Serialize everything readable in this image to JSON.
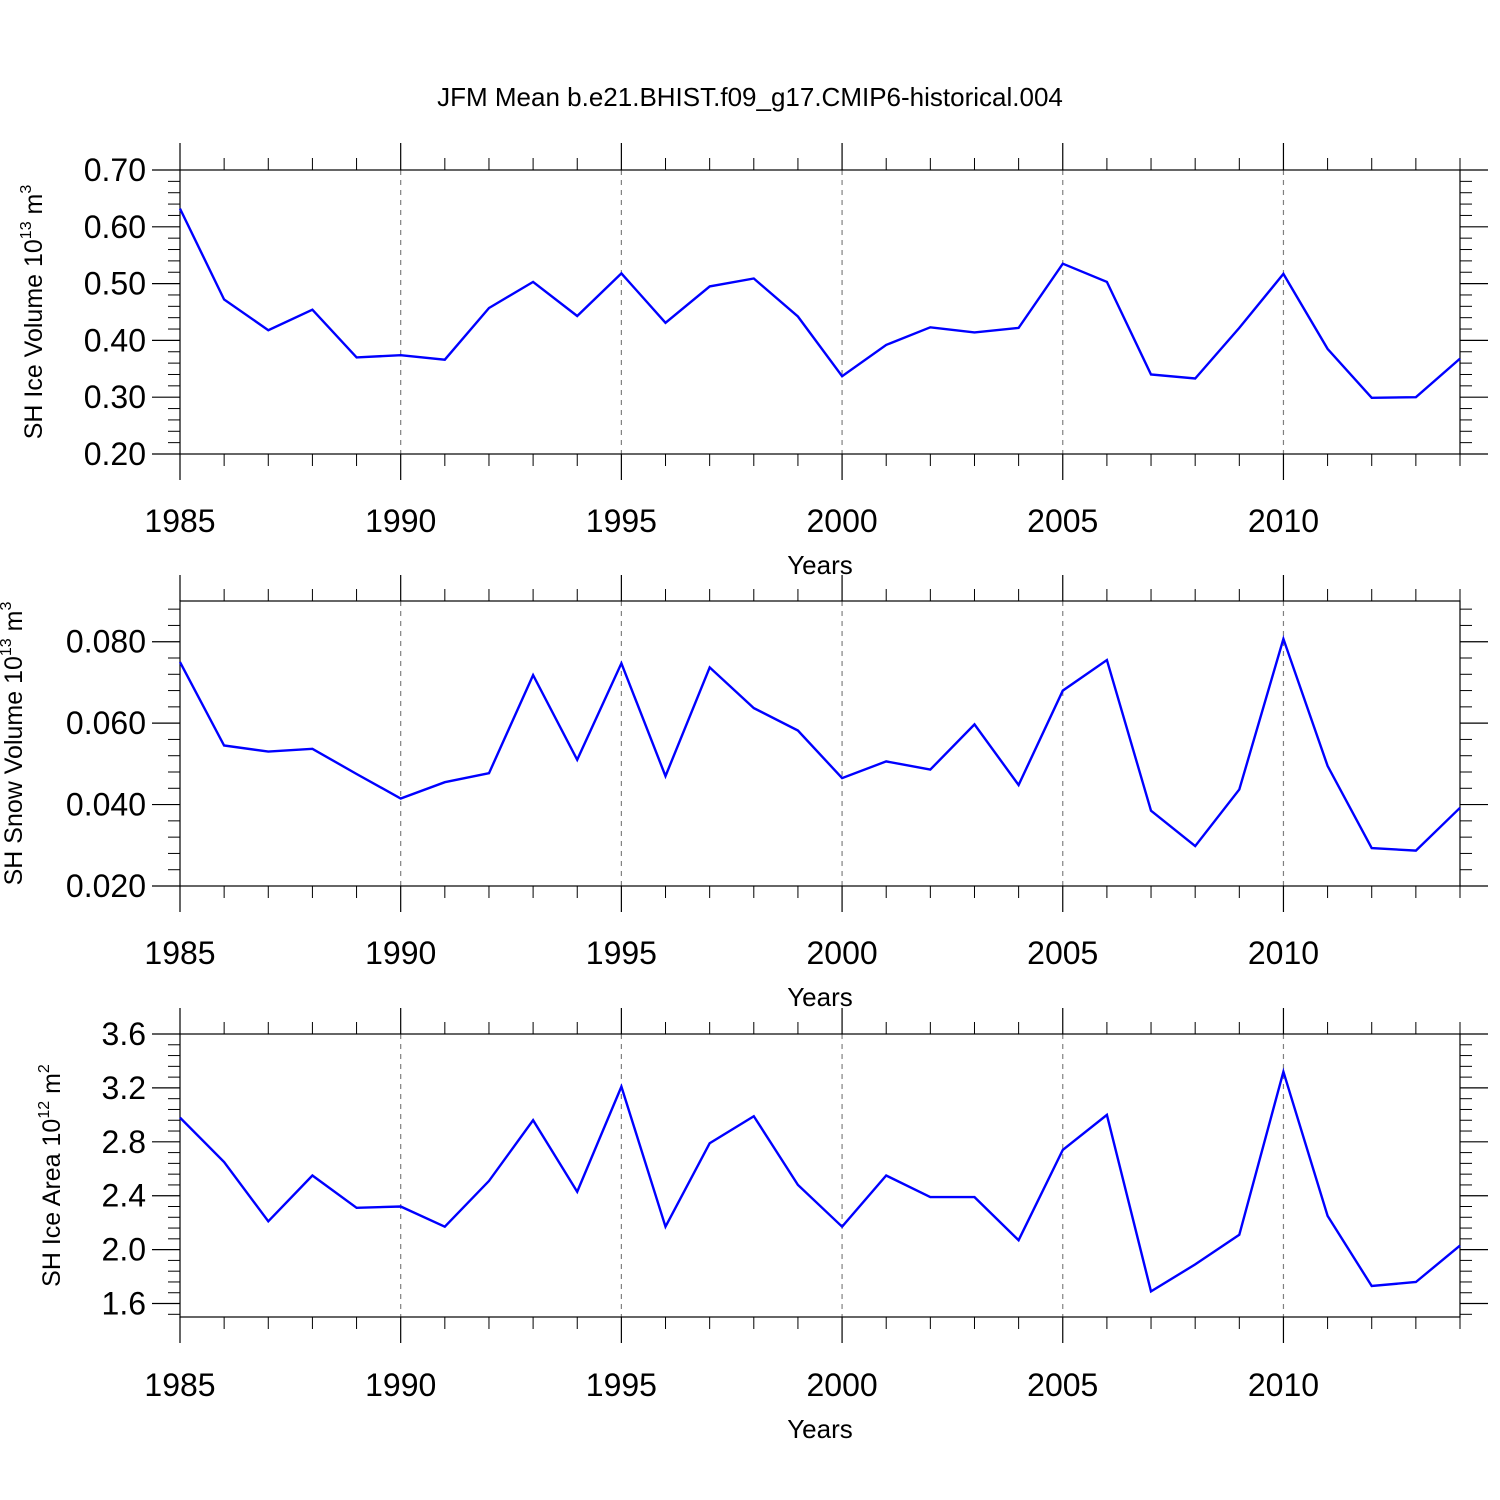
{
  "title": "JFM Mean b.e21.BHIST.f09_g17.CMIP6-historical.004",
  "colors": {
    "line": "#0000ff",
    "axes": "#000000",
    "grid": "#808080",
    "background": "#ffffff"
  },
  "chart_data": [
    {
      "type": "line",
      "ylabel": {
        "prefix": "SH Ice Volume 10",
        "exp": "13",
        "mid": " m",
        "unit_exp": "3"
      },
      "xlabel": "Years",
      "xlim": [
        1985,
        2014
      ],
      "ylim": [
        0.2,
        0.7
      ],
      "xticks": [
        1985,
        1990,
        1995,
        2000,
        2005,
        2010
      ],
      "xtick_labels": [
        "1985",
        "1990",
        "1995",
        "2000",
        "2005",
        "2010"
      ],
      "yticks": [
        0.2,
        0.3,
        0.4,
        0.5,
        0.6,
        0.7
      ],
      "ytick_labels": [
        "0.20",
        "0.30",
        "0.40",
        "0.50",
        "0.60",
        "0.70"
      ],
      "grid": "vertical dashed at major x ticks",
      "x": [
        1985,
        1986,
        1987,
        1988,
        1989,
        1990,
        1991,
        1992,
        1993,
        1994,
        1995,
        1996,
        1997,
        1998,
        1999,
        2000,
        2001,
        2002,
        2003,
        2004,
        2005,
        2006,
        2007,
        2008,
        2009,
        2010,
        2011,
        2012,
        2013,
        2014
      ],
      "series": [
        {
          "values": [
            0.632,
            0.472,
            0.418,
            0.454,
            0.37,
            0.374,
            0.366,
            0.457,
            0.503,
            0.443,
            0.518,
            0.431,
            0.495,
            0.509,
            0.442,
            0.337,
            0.392,
            0.423,
            0.414,
            0.422,
            0.535,
            0.503,
            0.34,
            0.333,
            0.422,
            0.517,
            0.385,
            0.299,
            0.3,
            0.368
          ]
        }
      ]
    },
    {
      "type": "line",
      "ylabel": {
        "prefix": "SH Snow Volume 10",
        "exp": "13",
        "mid": " m",
        "unit_exp": "3"
      },
      "xlabel": "Years",
      "xlim": [
        1985,
        2014
      ],
      "ylim": [
        0.02,
        0.09
      ],
      "xticks": [
        1985,
        1990,
        1995,
        2000,
        2005,
        2010
      ],
      "xtick_labels": [
        "1985",
        "1990",
        "1995",
        "2000",
        "2005",
        "2010"
      ],
      "yticks": [
        0.02,
        0.04,
        0.06,
        0.08
      ],
      "ytick_labels": [
        "0.020",
        "0.040",
        "0.060",
        "0.080"
      ],
      "grid": "vertical dashed at major x ticks",
      "x": [
        1985,
        1986,
        1987,
        1988,
        1989,
        1990,
        1991,
        1992,
        1993,
        1994,
        1995,
        1996,
        1997,
        1998,
        1999,
        2000,
        2001,
        2002,
        2003,
        2004,
        2005,
        2006,
        2007,
        2008,
        2009,
        2010,
        2011,
        2012,
        2013,
        2014
      ],
      "series": [
        {
          "values": [
            0.075,
            0.0545,
            0.053,
            0.0537,
            0.0475,
            0.0415,
            0.0455,
            0.0477,
            0.0718,
            0.051,
            0.0747,
            0.047,
            0.0737,
            0.0637,
            0.0582,
            0.0465,
            0.0506,
            0.0486,
            0.0597,
            0.0448,
            0.068,
            0.0755,
            0.0385,
            0.0298,
            0.0437,
            0.0807,
            0.0495,
            0.0293,
            0.0287,
            0.0392
          ]
        }
      ]
    },
    {
      "type": "line",
      "ylabel": {
        "prefix": "SH Ice Area 10",
        "exp": "12",
        "mid": " m",
        "unit_exp": "2"
      },
      "xlabel": "Years",
      "xlim": [
        1985,
        2014
      ],
      "ylim": [
        1.5,
        3.6
      ],
      "xticks": [
        1985,
        1990,
        1995,
        2000,
        2005,
        2010
      ],
      "xtick_labels": [
        "1985",
        "1990",
        "1995",
        "2000",
        "2005",
        "2010"
      ],
      "yticks": [
        1.6,
        2.0,
        2.4,
        2.8,
        3.2,
        3.6
      ],
      "ytick_labels": [
        "1.6",
        "2.0",
        "2.4",
        "2.8",
        "3.2",
        "3.6"
      ],
      "grid": "vertical dashed at major x ticks",
      "x": [
        1985,
        1986,
        1987,
        1988,
        1989,
        1990,
        1991,
        1992,
        1993,
        1994,
        1995,
        1996,
        1997,
        1998,
        1999,
        2000,
        2001,
        2002,
        2003,
        2004,
        2005,
        2006,
        2007,
        2008,
        2009,
        2010,
        2011,
        2012,
        2013,
        2014
      ],
      "series": [
        {
          "values": [
            2.98,
            2.65,
            2.21,
            2.55,
            2.31,
            2.32,
            2.17,
            2.51,
            2.96,
            2.43,
            3.21,
            2.17,
            2.79,
            2.99,
            2.48,
            2.17,
            2.55,
            2.39,
            2.39,
            2.07,
            2.74,
            3.0,
            1.69,
            1.89,
            2.11,
            3.32,
            2.25,
            1.73,
            1.76,
            2.03
          ]
        }
      ]
    }
  ]
}
